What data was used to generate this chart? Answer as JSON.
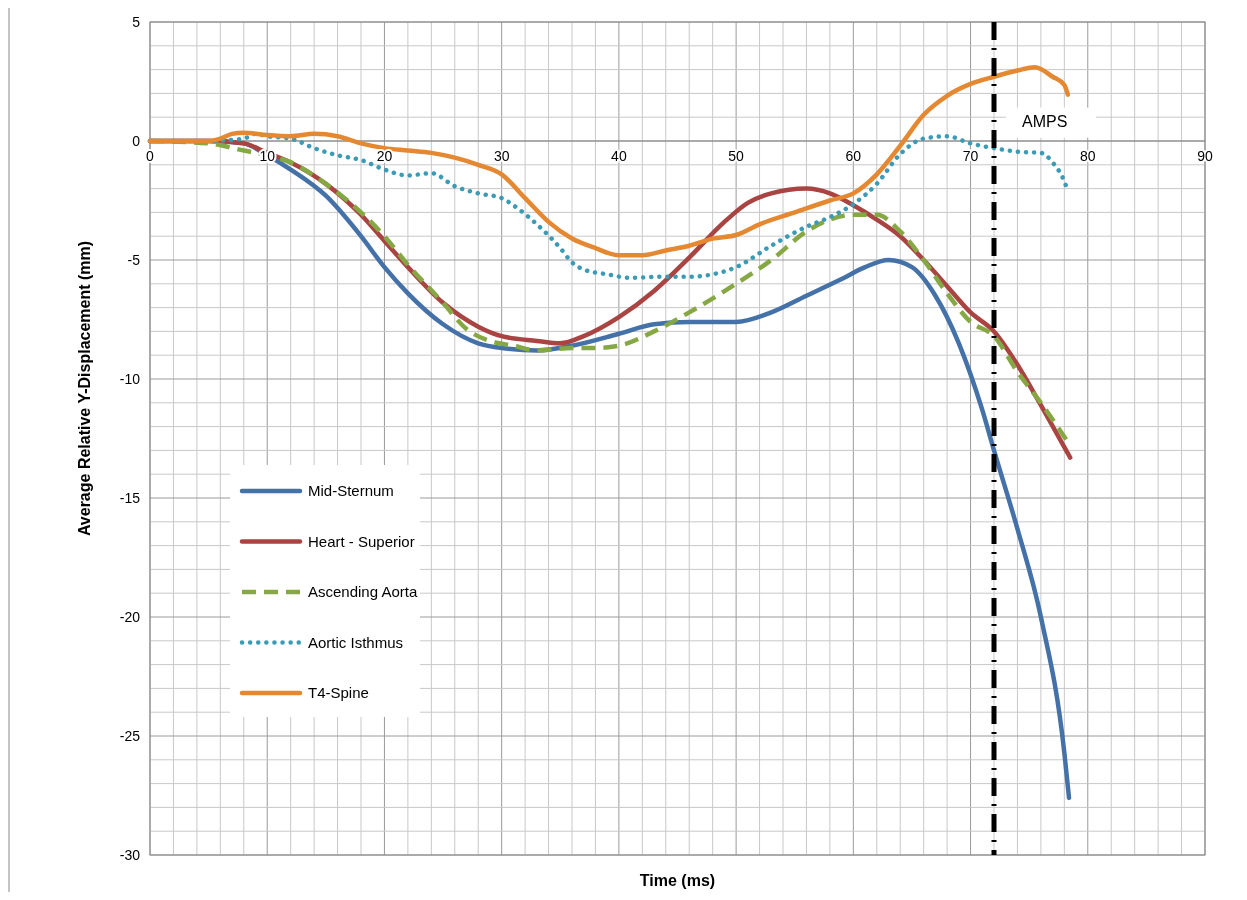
{
  "chart_data": {
    "type": "line",
    "xlabel": "Time (ms)",
    "ylabel": "Average Relative Y-Displacement (mm)",
    "xlim": [
      0,
      90
    ],
    "ylim": [
      -30,
      5
    ],
    "xticks": [
      0,
      {
        "value": 2,
        "label": null
      },
      {
        "value": 4,
        "label": null
      },
      {
        "value": 6,
        "label": null
      },
      {
        "value": 8,
        "label": null
      },
      10,
      {
        "value": 12,
        "label": null
      },
      {
        "value": 14,
        "label": null
      },
      {
        "value": 16,
        "label": null
      },
      {
        "value": 18,
        "label": null
      },
      20,
      {
        "value": 22,
        "label": null
      },
      {
        "value": 24,
        "label": null
      },
      {
        "value": 26,
        "label": null
      },
      {
        "value": 28,
        "label": null
      },
      30,
      {
        "value": 32,
        "label": null
      },
      {
        "value": 34,
        "label": null
      },
      {
        "value": 36,
        "label": null
      },
      {
        "value": 38,
        "label": null
      },
      40,
      {
        "value": 42,
        "label": null
      },
      {
        "value": 44,
        "label": null
      },
      {
        "value": 46,
        "label": null
      },
      {
        "value": 48,
        "label": null
      },
      50,
      {
        "value": 52,
        "label": null
      },
      {
        "value": 54,
        "label": null
      },
      {
        "value": 56,
        "label": null
      },
      {
        "value": 58,
        "label": null
      },
      60,
      {
        "value": 62,
        "label": null
      },
      {
        "value": 64,
        "label": null
      },
      {
        "value": 66,
        "label": null
      },
      {
        "value": 68,
        "label": null
      },
      70,
      {
        "value": 72,
        "label": null
      },
      {
        "value": 74,
        "label": null
      },
      {
        "value": 76,
        "label": null
      },
      {
        "value": 78,
        "label": null
      },
      80,
      {
        "value": 82,
        "label": null
      },
      {
        "value": 84,
        "label": null
      },
      {
        "value": 86,
        "label": null
      },
      {
        "value": 88,
        "label": null
      },
      90
    ],
    "yticks": [
      5,
      {
        "value": 4,
        "label": null
      },
      {
        "value": 3,
        "label": null
      },
      {
        "value": 2,
        "label": null
      },
      {
        "value": 1,
        "label": null
      },
      0,
      {
        "value": -1,
        "label": null
      },
      {
        "value": -2,
        "label": null
      },
      {
        "value": -3,
        "label": null
      },
      {
        "value": -4,
        "label": null
      },
      -5,
      {
        "value": -6,
        "label": null
      },
      {
        "value": -7,
        "label": null
      },
      {
        "value": -8,
        "label": null
      },
      {
        "value": -9,
        "label": null
      },
      -10,
      {
        "value": -11,
        "label": null
      },
      {
        "value": -12,
        "label": null
      },
      {
        "value": -13,
        "label": null
      },
      {
        "value": -14,
        "label": null
      },
      -15,
      {
        "value": -16,
        "label": null
      },
      {
        "value": -17,
        "label": null
      },
      {
        "value": -18,
        "label": null
      },
      {
        "value": -19,
        "label": null
      },
      -20,
      {
        "value": -21,
        "label": null
      },
      {
        "value": -22,
        "label": null
      },
      {
        "value": -23,
        "label": null
      },
      {
        "value": -24,
        "label": null
      },
      -25,
      {
        "value": -26,
        "label": null
      },
      {
        "value": -27,
        "label": null
      },
      {
        "value": -28,
        "label": null
      },
      {
        "value": -29,
        "label": null
      },
      -30
    ],
    "grid": true,
    "legend": "left",
    "marker": "none",
    "ref_lines": [
      {
        "axis": "x",
        "value": 72,
        "label": "AMPS",
        "color": "#000000",
        "line_style": "dashdot"
      }
    ],
    "series": [
      {
        "name": "Mid-Sternum",
        "color": "#4472a8",
        "line_style": "solid",
        "x": [
          0,
          5,
          8,
          10,
          12,
          15,
          18,
          20,
          22,
          25,
          28,
          30,
          33,
          36,
          40,
          43,
          46,
          50,
          53,
          56,
          59,
          61,
          63,
          65,
          67,
          69,
          71,
          72,
          74,
          76,
          78,
          78.4
        ],
        "values": [
          0,
          0,
          -0.1,
          -0.6,
          -1.2,
          -2.3,
          -4.0,
          -5.3,
          -6.4,
          -7.7,
          -8.5,
          -8.7,
          -8.8,
          -8.6,
          -8.1,
          -7.7,
          -7.6,
          -7.6,
          -7.2,
          -6.5,
          -5.8,
          -5.3,
          -5.0,
          -5.3,
          -6.5,
          -8.5,
          -11.3,
          -13.0,
          -16.3,
          -20.0,
          -25.7,
          -27.6
        ]
      },
      {
        "name": "Heart - Superior",
        "color": "#a94442",
        "line_style": "solid",
        "x": [
          0,
          5,
          8,
          10,
          12,
          15,
          18,
          20,
          22,
          25,
          28,
          30,
          33,
          35,
          37,
          40,
          43,
          46,
          49,
          51,
          53,
          56,
          58,
          60,
          62,
          64,
          66,
          68,
          70,
          72,
          74,
          76,
          78.5
        ],
        "values": [
          0,
          0,
          -0.1,
          -0.5,
          -0.9,
          -1.8,
          -3.1,
          -4.2,
          -5.3,
          -6.8,
          -7.8,
          -8.2,
          -8.4,
          -8.5,
          -8.2,
          -7.4,
          -6.3,
          -4.9,
          -3.4,
          -2.6,
          -2.2,
          -2.0,
          -2.2,
          -2.7,
          -3.3,
          -4.0,
          -5.0,
          -6.1,
          -7.2,
          -8.0,
          -9.4,
          -11.1,
          -13.3
        ]
      },
      {
        "name": "Ascending Aorta",
        "color": "#86a844",
        "line_style": "dashed",
        "x": [
          0,
          5,
          8,
          10,
          12,
          15,
          18,
          20,
          22,
          25,
          27,
          29,
          31,
          33,
          36,
          38,
          40,
          43,
          46,
          50,
          53,
          56,
          58,
          60,
          62,
          64,
          66,
          68,
          70,
          72,
          74,
          76,
          78.5
        ],
        "values": [
          0,
          -0.1,
          -0.4,
          -0.6,
          -0.9,
          -1.8,
          -3.0,
          -4.0,
          -5.2,
          -6.8,
          -7.9,
          -8.4,
          -8.6,
          -8.8,
          -8.7,
          -8.7,
          -8.6,
          -8.0,
          -7.2,
          -6.0,
          -5.0,
          -3.8,
          -3.3,
          -3.1,
          -3.1,
          -3.8,
          -5.0,
          -6.4,
          -7.6,
          -8.2,
          -9.7,
          -11.0,
          -12.8
        ]
      },
      {
        "name": "Aortic Isthmus",
        "color": "#3b9bb5",
        "line_style": "dotted",
        "x": [
          0,
          5,
          8,
          9,
          10,
          12,
          14,
          16,
          18,
          20,
          22,
          24,
          26,
          28,
          30,
          31,
          33,
          35,
          36,
          37,
          39,
          41,
          44,
          46,
          48,
          50,
          53,
          56,
          58,
          60,
          62,
          64,
          66,
          68,
          70,
          72,
          74,
          76,
          77,
          78,
          78.3
        ],
        "values": [
          0,
          0,
          0.1,
          0.3,
          0.2,
          0.1,
          -0.3,
          -0.6,
          -0.8,
          -1.2,
          -1.45,
          -1.35,
          -1.9,
          -2.2,
          -2.4,
          -2.7,
          -3.5,
          -4.5,
          -5.1,
          -5.4,
          -5.6,
          -5.75,
          -5.7,
          -5.7,
          -5.6,
          -5.3,
          -4.4,
          -3.6,
          -3.2,
          -2.65,
          -1.8,
          -0.55,
          0.1,
          0.2,
          -0.1,
          -0.3,
          -0.45,
          -0.5,
          -0.9,
          -1.7,
          -2.1
        ]
      },
      {
        "name": "T4-Spine",
        "color": "#e48832",
        "line_style": "solid",
        "x": [
          0,
          5,
          6,
          7,
          8,
          10,
          12,
          14,
          16,
          18,
          20,
          22,
          24,
          26,
          28,
          30,
          32,
          34,
          36,
          38,
          40,
          42,
          44,
          46,
          48,
          50,
          52,
          55,
          58,
          60,
          62,
          64,
          66,
          68,
          70,
          72,
          74,
          75.5,
          77,
          78,
          78.3
        ],
        "values": [
          0,
          0,
          0.1,
          0.3,
          0.35,
          0.25,
          0.2,
          0.3,
          0.2,
          -0.1,
          -0.3,
          -0.4,
          -0.5,
          -0.7,
          -1.0,
          -1.4,
          -2.4,
          -3.4,
          -4.1,
          -4.5,
          -4.8,
          -4.8,
          -4.6,
          -4.4,
          -4.1,
          -3.95,
          -3.5,
          -3.0,
          -2.5,
          -2.2,
          -1.4,
          -0.2,
          1.1,
          1.9,
          2.4,
          2.7,
          2.96,
          3.1,
          2.7,
          2.35,
          1.95
        ]
      }
    ]
  }
}
